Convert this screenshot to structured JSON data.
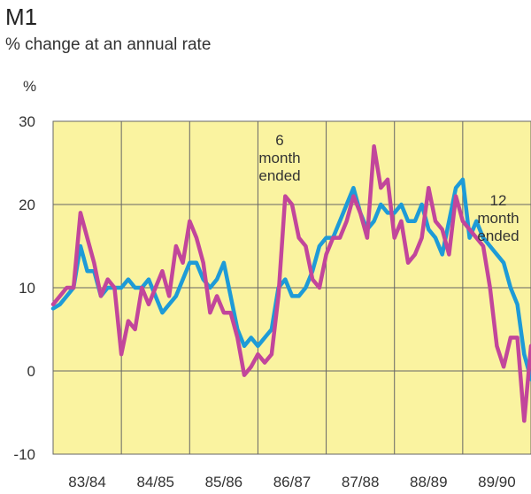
{
  "chart_data": {
    "type": "line",
    "title": "M1",
    "subtitle": "% change at an annual rate",
    "ylabel": "%",
    "ylim": [
      -10,
      30
    ],
    "yticks": [
      -10,
      0,
      10,
      20,
      30
    ],
    "categories": [
      "83/84",
      "84/85",
      "85/86",
      "86/87",
      "87/88",
      "88/89",
      "89/90"
    ],
    "x_range": [
      0,
      7
    ],
    "grid": true,
    "colors": {
      "background": "#faf3a0",
      "six_month": "#c2469b",
      "twelve_month": "#1e9bd7",
      "grid": "#666666"
    },
    "annotations": [
      {
        "lines": [
          "6",
          "month",
          "ended"
        ],
        "series": "6 month ended"
      },
      {
        "lines": [
          "12",
          "month",
          "ended"
        ],
        "series": "12 month ended"
      }
    ],
    "series": [
      {
        "name": "6 month ended",
        "x": [
          0,
          0.1,
          0.2,
          0.3,
          0.4,
          0.5,
          0.6,
          0.7,
          0.8,
          0.9,
          1.0,
          1.1,
          1.2,
          1.3,
          1.4,
          1.5,
          1.6,
          1.7,
          1.8,
          1.9,
          2.0,
          2.1,
          2.2,
          2.3,
          2.4,
          2.5,
          2.6,
          2.7,
          2.8,
          2.9,
          3.0,
          3.1,
          3.2,
          3.3,
          3.4,
          3.5,
          3.6,
          3.7,
          3.8,
          3.9,
          4.0,
          4.1,
          4.2,
          4.3,
          4.4,
          4.5,
          4.6,
          4.7,
          4.8,
          4.9,
          5.0,
          5.1,
          5.2,
          5.3,
          5.4,
          5.5,
          5.6,
          5.7,
          5.8,
          5.9,
          6.0,
          6.1,
          6.2,
          6.3,
          6.4,
          6.5,
          6.6,
          6.7,
          6.8,
          6.9,
          7.0
        ],
        "values": [
          8,
          9,
          10,
          10,
          19,
          16,
          13,
          9,
          11,
          10,
          2,
          6,
          5,
          10,
          8,
          10,
          12,
          9,
          15,
          13,
          18,
          16,
          13,
          7,
          9,
          7,
          7,
          4,
          -0.5,
          0.5,
          2,
          1,
          2,
          9,
          21,
          20,
          16,
          15,
          11,
          10,
          14,
          16,
          16,
          18,
          21,
          19,
          16,
          27,
          22,
          23,
          16,
          18,
          13,
          14,
          16,
          22,
          18,
          17,
          14,
          21,
          18,
          17,
          16,
          15,
          10,
          3,
          0.5,
          4,
          4,
          -6,
          3
        ]
      },
      {
        "name": "12 month ended",
        "x": [
          0,
          0.1,
          0.2,
          0.3,
          0.4,
          0.5,
          0.6,
          0.7,
          0.8,
          0.9,
          1.0,
          1.1,
          1.2,
          1.3,
          1.4,
          1.5,
          1.6,
          1.7,
          1.8,
          1.9,
          2.0,
          2.1,
          2.2,
          2.3,
          2.4,
          2.5,
          2.6,
          2.7,
          2.8,
          2.9,
          3.0,
          3.1,
          3.2,
          3.3,
          3.4,
          3.5,
          3.6,
          3.7,
          3.8,
          3.9,
          4.0,
          4.1,
          4.2,
          4.3,
          4.4,
          4.5,
          4.6,
          4.7,
          4.8,
          4.9,
          5.0,
          5.1,
          5.2,
          5.3,
          5.4,
          5.5,
          5.6,
          5.7,
          5.8,
          5.9,
          6.0,
          6.1,
          6.2,
          6.3,
          6.4,
          6.5,
          6.6,
          6.7,
          6.8,
          6.9,
          7.0
        ],
        "values": [
          7.5,
          8,
          9,
          10,
          15,
          12,
          12,
          9,
          10,
          10,
          10,
          11,
          10,
          10,
          11,
          9,
          7,
          8,
          9,
          11,
          13,
          13,
          11,
          10,
          11,
          13,
          9,
          5,
          3,
          4,
          3,
          4,
          5,
          10,
          11,
          9,
          9,
          10,
          12,
          15,
          16,
          16,
          18,
          20,
          22,
          19,
          17,
          18,
          20,
          19,
          19,
          20,
          18,
          18,
          20,
          17,
          16,
          14,
          18,
          22,
          23,
          16,
          18,
          16,
          15,
          14,
          13,
          10,
          8,
          2,
          -1
        ]
      }
    ]
  }
}
